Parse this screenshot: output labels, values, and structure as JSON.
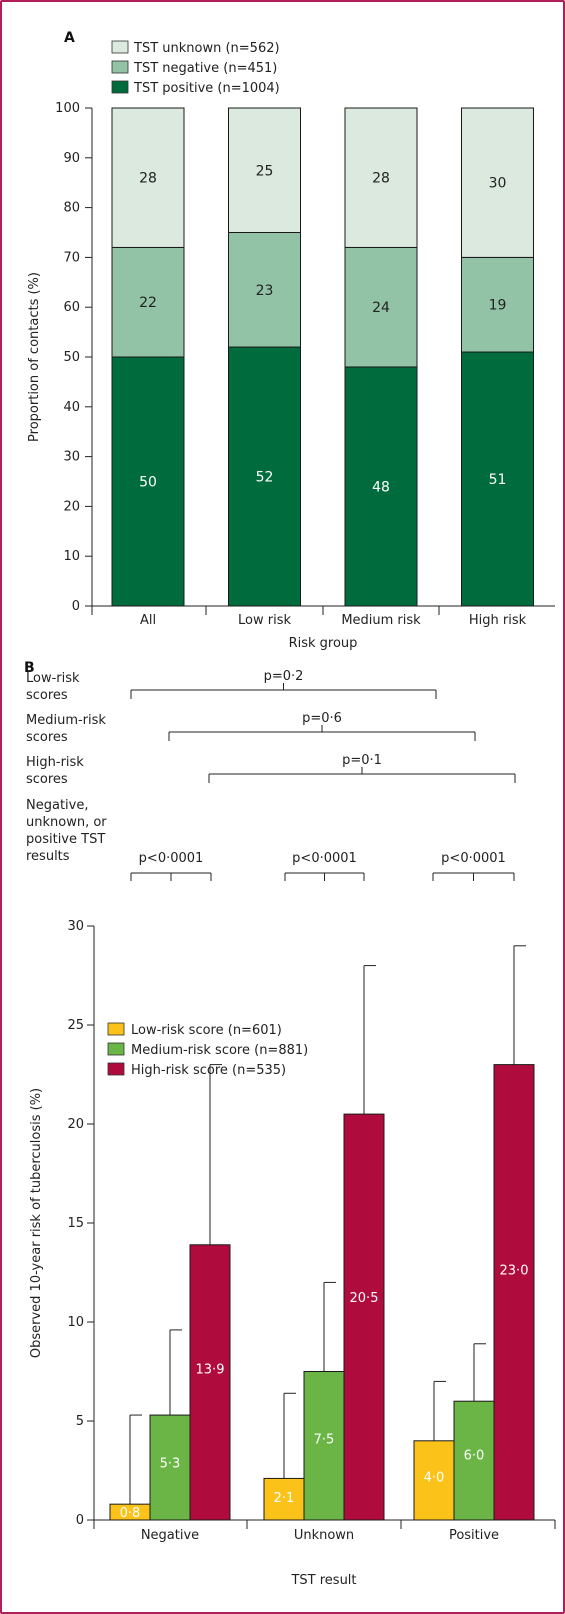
{
  "chart_data": [
    {
      "panel_label": "A",
      "type": "bar",
      "stacked": true,
      "categories": [
        "All",
        "Low risk",
        "Medium risk",
        "High risk"
      ],
      "series": [
        {
          "name": "TST positive (n=1004)",
          "values": [
            50,
            52,
            48,
            51
          ],
          "labels": [
            "50",
            "52",
            "48",
            "51"
          ]
        },
        {
          "name": "TST negative (n=451)",
          "values": [
            22,
            23,
            24,
            19
          ],
          "labels": [
            "22",
            "23",
            "24",
            "19"
          ]
        },
        {
          "name": "TST unknown (n=562)",
          "values": [
            28,
            25,
            28,
            30
          ],
          "labels": [
            "28",
            "25",
            "28",
            "30"
          ]
        }
      ],
      "legend_order": [
        "TST unknown (n=562)",
        "TST negative (n=451)",
        "TST positive (n=1004)"
      ],
      "legend_position": "top-left",
      "xlabel": "Risk group",
      "ylabel": "Proportion of contacts (%)",
      "ylim": [
        0,
        100
      ],
      "yticks": [
        "0",
        "10",
        "20",
        "30",
        "40",
        "50",
        "60",
        "70",
        "80",
        "90",
        "100"
      ],
      "colors": {
        "TST positive (n=1004)": "#006b3c",
        "TST negative (n=451)": "#93c3a7",
        "TST unknown (n=562)": "#dbe9df"
      },
      "grid": false
    },
    {
      "panel_label": "B",
      "type": "bar",
      "grouped": true,
      "categories": [
        "Negative",
        "Unknown",
        "Positive"
      ],
      "series": [
        {
          "name": "Low-risk score (n=601)",
          "values": [
            0.8,
            2.1,
            4.0
          ],
          "labels": [
            "0·8",
            "2·1",
            "4·0"
          ],
          "error_upper": [
            5.3,
            6.4,
            7.0
          ]
        },
        {
          "name": "Medium-risk score (n=881)",
          "values": [
            5.3,
            7.5,
            6.0
          ],
          "labels": [
            "5·3",
            "7·5",
            "6·0"
          ],
          "error_upper": [
            9.6,
            12.0,
            8.9
          ]
        },
        {
          "name": "High-risk score (n=535)",
          "values": [
            13.9,
            20.5,
            23.0
          ],
          "labels": [
            "13·9",
            "20·5",
            "23·0"
          ],
          "error_upper": [
            23.0,
            28.0,
            29.0
          ]
        }
      ],
      "legend_position": "top-left",
      "xlabel": "TST result",
      "ylabel": "Observed 10-year risk of tuberculosis (%)",
      "ylim": [
        0,
        30
      ],
      "yticks": [
        "0",
        "5",
        "10",
        "15",
        "20",
        "25",
        "30"
      ],
      "colors": {
        "Low-risk score (n=601)": "#fbc31a",
        "Medium-risk score (n=881)": "#6ab545",
        "High-risk score (n=535)": "#b00b3d"
      },
      "grid": false,
      "comparisons": [
        {
          "label_lines": [
            "Low-risk",
            "scores"
          ],
          "p": "p=0·2"
        },
        {
          "label_lines": [
            "Medium-risk",
            "scores"
          ],
          "p": "p=0·6"
        },
        {
          "label_lines": [
            "High-risk",
            "scores"
          ],
          "p": "p=0·1"
        },
        {
          "label_lines": [
            "Negative,",
            "unknown, or",
            "positive TST",
            "results"
          ],
          "p": [
            "p<0·0001",
            "p<0·0001",
            "p<0·0001"
          ]
        }
      ]
    }
  ]
}
